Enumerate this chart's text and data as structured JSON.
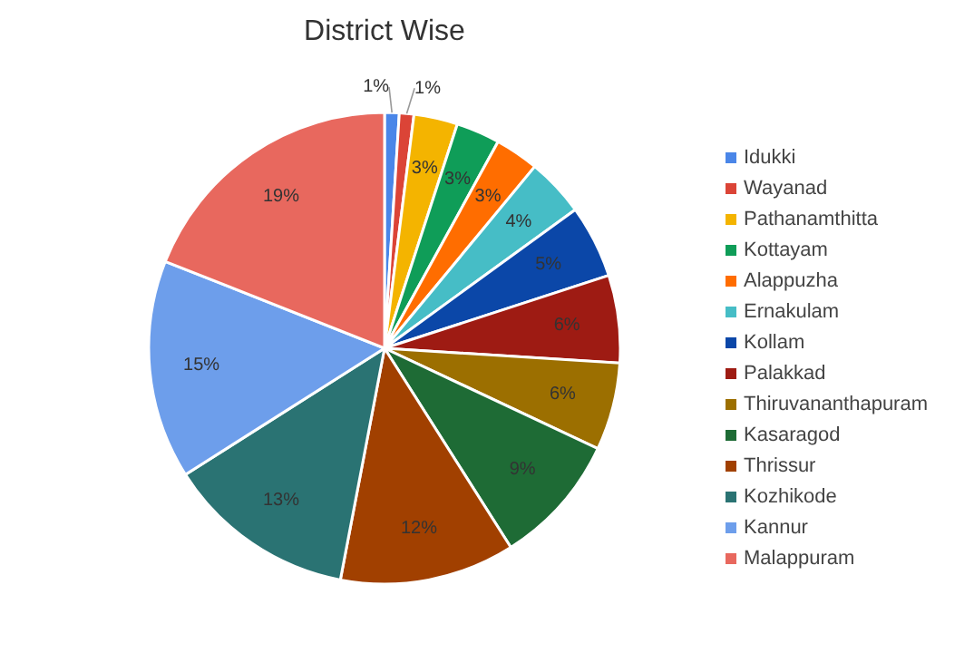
{
  "chart_data": {
    "type": "pie",
    "title": "District Wise",
    "categories": [
      "Idukki",
      "Wayanad",
      "Pathanamthitta",
      "Kottayam",
      "Alappuzha",
      "Ernakulam",
      "Kollam",
      "Palakkad",
      "Thiruvananthapuram",
      "Kasaragod",
      "Thrissur",
      "Kozhikode",
      "Kannur",
      "Malappuram"
    ],
    "values": [
      1,
      1,
      3,
      3,
      3,
      4,
      5,
      6,
      6,
      9,
      12,
      13,
      15,
      19
    ],
    "colors": [
      "#4a86e8",
      "#db4437",
      "#f4b400",
      "#0f9d58",
      "#ff6d00",
      "#46bdc6",
      "#0b47a8",
      "#9e1b13",
      "#9c6f00",
      "#1e6b35",
      "#a14000",
      "#2a7373",
      "#6d9eeb",
      "#e8685e"
    ],
    "value_labels": [
      "1%",
      "1%",
      "3%",
      "3%",
      "3%",
      "4%",
      "5%",
      "6%",
      "6%",
      "9%",
      "12%",
      "13%",
      "15%",
      "19%"
    ],
    "legend": "right"
  }
}
